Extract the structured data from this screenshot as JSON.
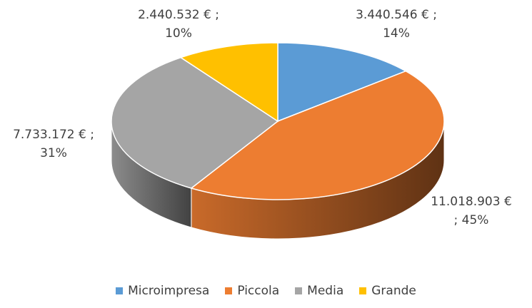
{
  "chart_data": {
    "type": "pie",
    "categories": [
      "Microimpresa",
      "Piccola",
      "Media",
      "Grande"
    ],
    "values": [
      3440546,
      11018903,
      7733172,
      2440532
    ],
    "value_labels": [
      "3.440.546 € ; 14%",
      "11.018.903 € ; 45%",
      "7.733.172 € ; 31%",
      "2.440.532 € ; 10%"
    ],
    "colors": [
      "#5b9bd5",
      "#ed7d31",
      "#a5a5a5",
      "#ffc000"
    ],
    "legend": "bottom"
  }
}
